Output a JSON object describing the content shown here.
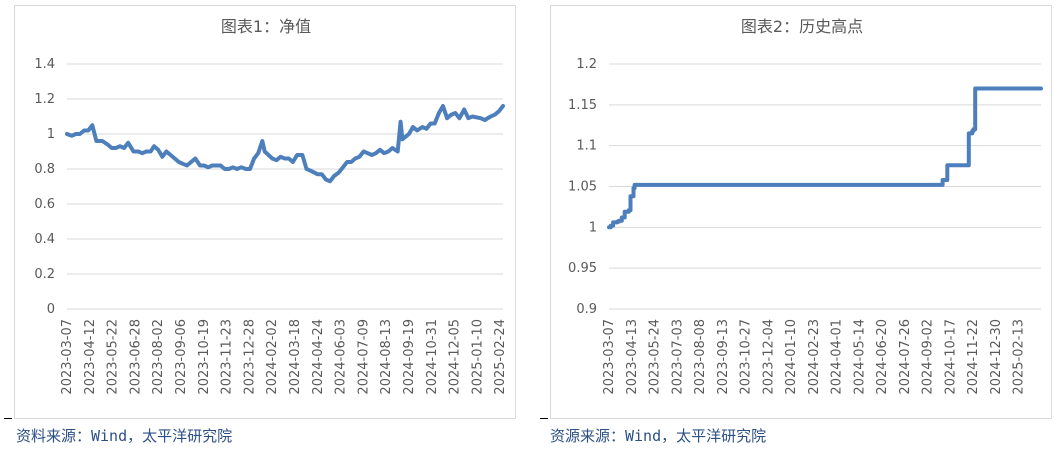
{
  "chart_data": [
    {
      "type": "line",
      "title": "图表1：净值",
      "xlabel": "",
      "ylabel": "",
      "ylim": [
        0,
        1.4
      ],
      "y_ticks": [
        0,
        0.2,
        0.4,
        0.6,
        0.8,
        1,
        1.2,
        1.4
      ],
      "y_tick_labels": [
        "0",
        "0.2",
        "0.4",
        "0.6",
        "0.8",
        "1",
        "1.2",
        "1.4"
      ],
      "x_ticks": [
        "2023-03-07",
        "2023-04-12",
        "2023-05-22",
        "2023-06-28",
        "2023-08-02",
        "2023-09-06",
        "2023-10-19",
        "2023-11-23",
        "2023-12-28",
        "2024-02-02",
        "2024-03-18",
        "2024-04-24",
        "2024-06-03",
        "2024-07-09",
        "2024-08-13",
        "2024-09-19",
        "2024-10-31",
        "2024-12-05",
        "2025-01-10",
        "2025-02-24"
      ],
      "grid": true,
      "color": "#4e7fbd",
      "x": [
        "2023-03-07",
        "2023-03-15",
        "2023-03-22",
        "2023-03-29",
        "2023-04-05",
        "2023-04-12",
        "2023-04-19",
        "2023-04-26",
        "2023-05-06",
        "2023-05-15",
        "2023-05-22",
        "2023-05-29",
        "2023-06-05",
        "2023-06-12",
        "2023-06-19",
        "2023-06-28",
        "2023-07-06",
        "2023-07-13",
        "2023-07-20",
        "2023-07-27",
        "2023-08-02",
        "2023-08-09",
        "2023-08-16",
        "2023-08-23",
        "2023-08-30",
        "2023-09-06",
        "2023-09-13",
        "2023-09-20",
        "2023-09-27",
        "2023-10-11",
        "2023-10-19",
        "2023-10-26",
        "2023-11-02",
        "2023-11-09",
        "2023-11-16",
        "2023-11-23",
        "2023-11-30",
        "2023-12-07",
        "2023-12-14",
        "2023-12-21",
        "2023-12-28",
        "2024-01-05",
        "2024-01-12",
        "2024-01-19",
        "2024-01-26",
        "2024-02-02",
        "2024-02-06",
        "2024-02-19",
        "2024-02-26",
        "2024-03-04",
        "2024-03-11",
        "2024-03-18",
        "2024-03-25",
        "2024-04-01",
        "2024-04-10",
        "2024-04-17",
        "2024-04-24",
        "2024-05-06",
        "2024-05-13",
        "2024-05-20",
        "2024-05-27",
        "2024-06-03",
        "2024-06-11",
        "2024-06-18",
        "2024-06-25",
        "2024-07-02",
        "2024-07-09",
        "2024-07-16",
        "2024-07-23",
        "2024-07-30",
        "2024-08-06",
        "2024-08-13",
        "2024-08-20",
        "2024-08-27",
        "2024-09-03",
        "2024-09-10",
        "2024-09-19",
        "2024-09-24",
        "2024-09-27",
        "2024-10-08",
        "2024-10-15",
        "2024-10-22",
        "2024-10-31",
        "2024-11-07",
        "2024-11-14",
        "2024-11-21",
        "2024-11-28",
        "2024-12-05",
        "2024-12-12",
        "2024-12-19",
        "2024-12-26",
        "2025-01-02",
        "2025-01-10",
        "2025-01-17",
        "2025-01-24",
        "2025-02-07",
        "2025-02-14",
        "2025-02-24",
        "2025-03-03",
        "2025-03-10",
        "2025-03-17"
      ],
      "values": [
        1.0,
        0.99,
        1.0,
        1.0,
        1.02,
        1.02,
        1.05,
        0.96,
        0.96,
        0.94,
        0.92,
        0.92,
        0.93,
        0.92,
        0.95,
        0.9,
        0.9,
        0.89,
        0.9,
        0.9,
        0.93,
        0.91,
        0.87,
        0.9,
        0.88,
        0.86,
        0.84,
        0.83,
        0.82,
        0.86,
        0.82,
        0.82,
        0.81,
        0.82,
        0.82,
        0.82,
        0.8,
        0.8,
        0.81,
        0.8,
        0.81,
        0.8,
        0.8,
        0.86,
        0.89,
        0.96,
        0.9,
        0.86,
        0.85,
        0.87,
        0.86,
        0.86,
        0.84,
        0.88,
        0.88,
        0.8,
        0.79,
        0.77,
        0.77,
        0.74,
        0.73,
        0.76,
        0.78,
        0.81,
        0.84,
        0.84,
        0.86,
        0.87,
        0.9,
        0.89,
        0.88,
        0.89,
        0.91,
        0.89,
        0.9,
        0.92,
        0.9,
        1.07,
        0.97,
        1.0,
        1.04,
        1.02,
        1.04,
        1.03,
        1.06,
        1.06,
        1.12,
        1.16,
        1.09,
        1.11,
        1.12,
        1.09,
        1.14,
        1.09,
        1.1,
        1.09,
        1.08,
        1.1,
        1.11,
        1.13,
        1.16
      ]
    },
    {
      "type": "line",
      "title": "图表2：历史高点",
      "xlabel": "",
      "ylabel": "",
      "ylim": [
        0.9,
        1.2
      ],
      "y_ticks": [
        0.9,
        0.95,
        1,
        1.05,
        1.1,
        1.15,
        1.2
      ],
      "y_tick_labels": [
        "0.9",
        "0.95",
        "1",
        "1.05",
        "1.1",
        "1.15",
        "1.2"
      ],
      "x_ticks": [
        "2023-03-07",
        "2023-04-13",
        "2023-05-24",
        "2023-07-03",
        "2023-08-08",
        "2023-09-13",
        "2023-10-27",
        "2023-12-04",
        "2024-01-10",
        "2024-02-23",
        "2024-04-01",
        "2024-05-14",
        "2024-06-20",
        "2024-07-26",
        "2024-09-02",
        "2024-10-17",
        "2024-11-22",
        "2024-12-30",
        "2025-02-13"
      ],
      "grid": true,
      "color": "#4e7fbd",
      "x": [
        "2023-03-07",
        "2023-03-10",
        "2023-03-14",
        "2023-03-21",
        "2023-03-24",
        "2023-03-29",
        "2023-04-03",
        "2023-04-10",
        "2023-04-13",
        "2023-04-18",
        "2023-04-20",
        "2024-09-27",
        "2024-09-30",
        "2024-10-08",
        "2024-11-12",
        "2024-11-14",
        "2024-11-20",
        "2024-11-22",
        "2024-11-25",
        "2025-03-18"
      ],
      "values": [
        1.0,
        1.002,
        1.006,
        1.007,
        1.008,
        1.012,
        1.019,
        1.021,
        1.038,
        1.048,
        1.052,
        1.052,
        1.058,
        1.076,
        1.076,
        1.115,
        1.118,
        1.12,
        1.17,
        1.17
      ]
    }
  ],
  "footer": {
    "source_left": "资料来源：Wind，太平洋研究院",
    "source_right": "资源来源：Wind，太平洋研究院"
  }
}
